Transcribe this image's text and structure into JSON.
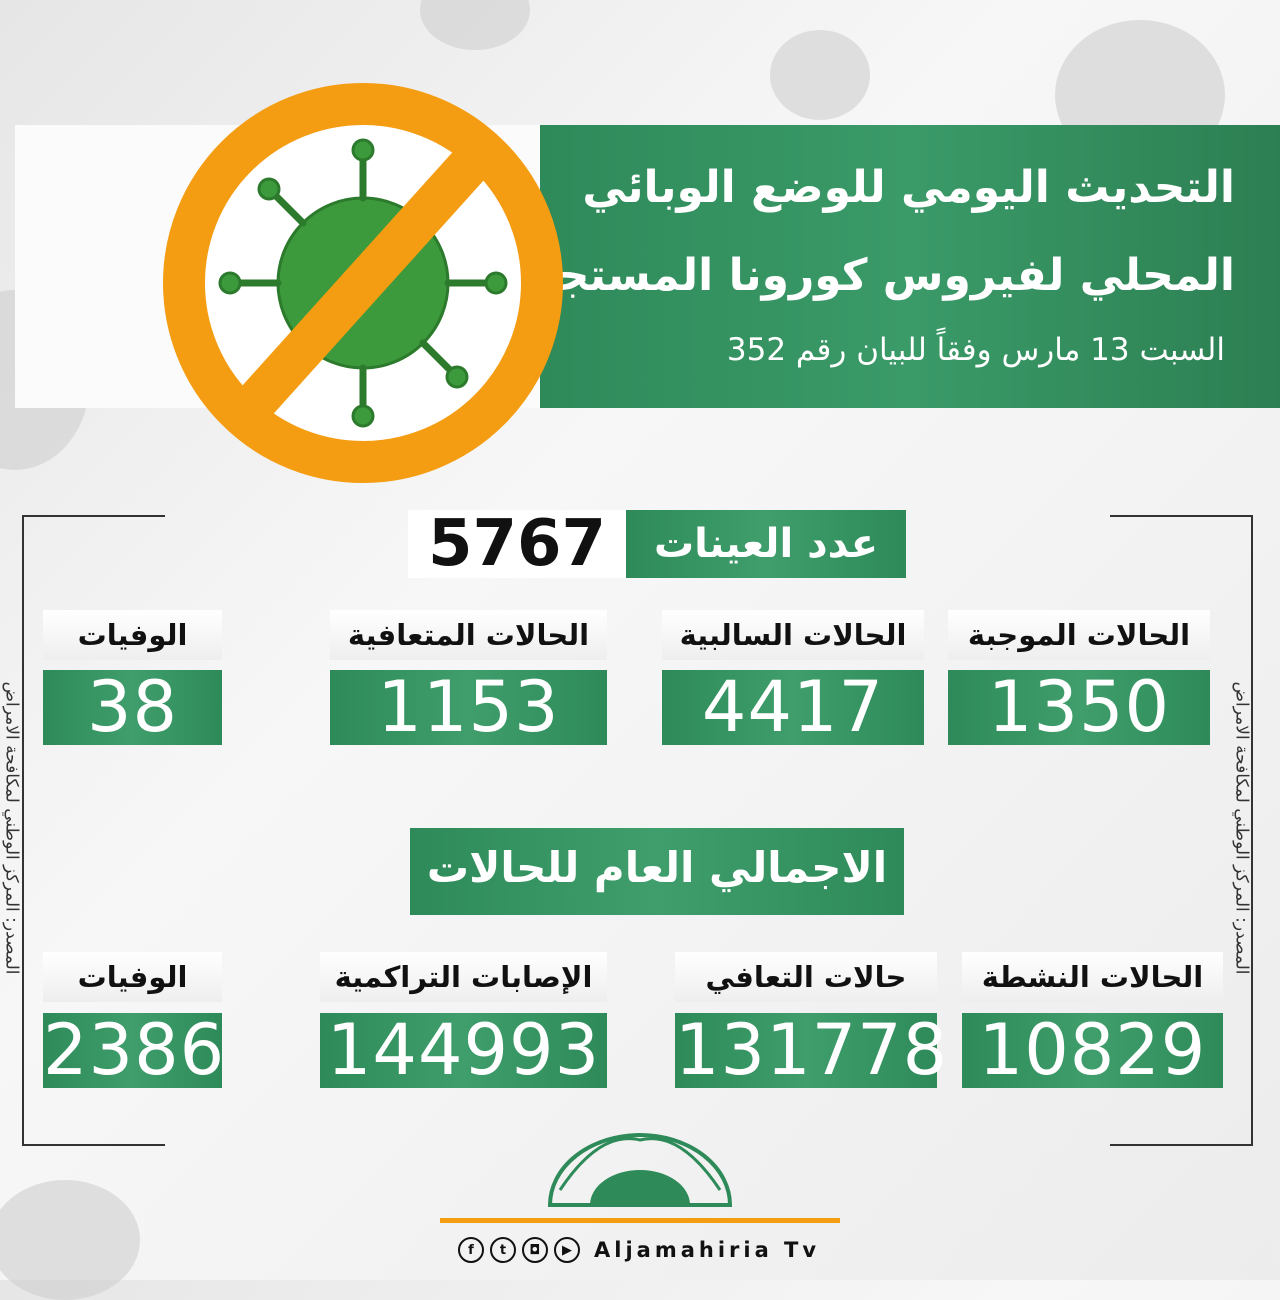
{
  "header": {
    "title_line1": "التحديث اليومي للوضع الوبائي",
    "title_line2": "المحلي لفيروس كورونا المستجد",
    "subtitle": "السبت 13 مارس وفقاً للبيان رقم 352"
  },
  "samples": {
    "label": "عدد العينات",
    "value": "5767"
  },
  "daily": [
    {
      "label": "الحالات الموجبة",
      "value": "1350"
    },
    {
      "label": "الحالات السالبية",
      "value": "4417"
    },
    {
      "label": "الحالات المتعافية",
      "value": "1153"
    },
    {
      "label": "الوفيات",
      "value": "38"
    }
  ],
  "totals_heading": "الاجمالي العام للحالات",
  "totals": [
    {
      "label": "الحالات النشطة",
      "value": "10829"
    },
    {
      "label": "حالات التعافي",
      "value": "131778"
    },
    {
      "label": "الإصابات التراكمية",
      "value": "144993"
    },
    {
      "label": "الوفيات",
      "value": "2386"
    }
  ],
  "source": "المصدر: المركز الوطني لمكافحة الامراض",
  "footer": {
    "brand": "Aljamahiria Tv",
    "social_icons": [
      "facebook-icon",
      "twitter-icon",
      "instagram-icon",
      "youtube-icon"
    ]
  },
  "colors": {
    "green": "#2f8a5a",
    "orange": "#f49d12"
  }
}
